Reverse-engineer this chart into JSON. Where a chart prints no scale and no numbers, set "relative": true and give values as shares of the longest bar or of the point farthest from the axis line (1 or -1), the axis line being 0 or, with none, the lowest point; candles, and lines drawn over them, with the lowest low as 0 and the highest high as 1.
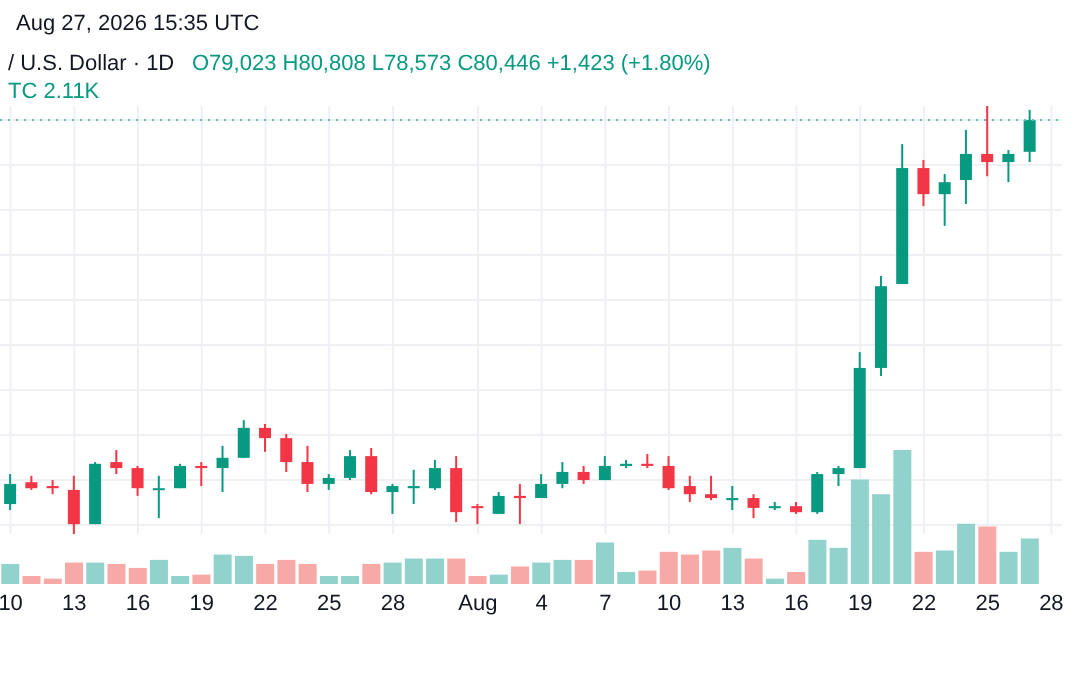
{
  "chart_data": [
    {
      "type": "candlestick",
      "relative": true,
      "grid": true,
      "annotations": [
        "Aug 27, 2026 15:35 UTC",
        "/ U.S. Dollar · 1D",
        "O79,023 H80,808 L78,573 C80,446 +1,423 (+1.80%)",
        "TC 2.11K"
      ],
      "categories": [
        "10",
        null,
        null,
        "13",
        null,
        null,
        "16",
        null,
        null,
        "19",
        null,
        null,
        "22",
        null,
        null,
        "25",
        null,
        null,
        "28",
        null,
        null,
        null,
        "Aug",
        null,
        null,
        "4",
        null,
        null,
        "7",
        null,
        null,
        "10",
        null,
        null,
        "13",
        null,
        null,
        "16",
        null,
        null,
        "19",
        null,
        null,
        "22",
        null,
        null,
        "25",
        null,
        null,
        "28"
      ],
      "ref_lines": [
        {
          "axis": "y",
          "value": 0.967,
          "color": "#5fc4b3",
          "line_style": "dotted"
        }
      ],
      "ohlc": [
        [
          0.07,
          0.14,
          0.056,
          0.117
        ],
        [
          0.121,
          0.136,
          0.103,
          0.107
        ],
        [
          0.112,
          0.126,
          0.093,
          0.107
        ],
        [
          0.103,
          0.136,
          0,
          0.023
        ],
        [
          0.023,
          0.168,
          0.023,
          0.164
        ],
        [
          0.168,
          0.196,
          0.14,
          0.154
        ],
        [
          0.154,
          0.159,
          0.089,
          0.107
        ],
        [
          0.103,
          0.136,
          0.037,
          0.107
        ],
        [
          0.107,
          0.164,
          0.107,
          0.159
        ],
        [
          0.159,
          0.168,
          0.112,
          0.154
        ],
        [
          0.154,
          0.206,
          0.098,
          0.178
        ],
        [
          0.178,
          0.266,
          0.178,
          0.248
        ],
        [
          0.248,
          0.257,
          0.192,
          0.224
        ],
        [
          0.224,
          0.234,
          0.145,
          0.168
        ],
        [
          0.168,
          0.206,
          0.098,
          0.117
        ],
        [
          0.117,
          0.14,
          0.103,
          0.131
        ],
        [
          0.131,
          0.196,
          0.126,
          0.182
        ],
        [
          0.182,
          0.201,
          0.093,
          0.098
        ],
        [
          0.098,
          0.117,
          0.047,
          0.112
        ],
        [
          0.107,
          0.15,
          0.07,
          0.112
        ],
        [
          0.107,
          0.173,
          0.103,
          0.154
        ],
        [
          0.154,
          0.182,
          0.028,
          0.051
        ],
        [
          0.065,
          0.07,
          0.023,
          0.061
        ],
        [
          0.047,
          0.098,
          0.047,
          0.089
        ],
        [
          0.089,
          0.117,
          0.023,
          0.084
        ],
        [
          0.084,
          0.14,
          0.084,
          0.117
        ],
        [
          0.117,
          0.168,
          0.107,
          0.145
        ],
        [
          0.145,
          0.159,
          0.117,
          0.126
        ],
        [
          0.126,
          0.182,
          0.126,
          0.159
        ],
        [
          0.159,
          0.173,
          0.154,
          0.164
        ],
        [
          0.164,
          0.187,
          0.154,
          0.159
        ],
        [
          0.159,
          0.182,
          0.103,
          0.107
        ],
        [
          0.112,
          0.136,
          0.075,
          0.093
        ],
        [
          0.093,
          0.136,
          0.079,
          0.084
        ],
        [
          0.079,
          0.112,
          0.056,
          0.084
        ],
        [
          0.084,
          0.093,
          0.037,
          0.061
        ],
        [
          0.061,
          0.075,
          0.056,
          0.065
        ],
        [
          0.065,
          0.075,
          0.047,
          0.051
        ],
        [
          0.051,
          0.145,
          0.047,
          0.14
        ],
        [
          0.14,
          0.159,
          0.112,
          0.154
        ],
        [
          0.154,
          0.425,
          0.154,
          0.388
        ],
        [
          0.388,
          0.603,
          0.369,
          0.579
        ],
        [
          0.584,
          0.911,
          0.584,
          0.855
        ],
        [
          0.855,
          0.874,
          0.766,
          0.794
        ],
        [
          0.794,
          0.841,
          0.72,
          0.822
        ],
        [
          0.827,
          0.944,
          0.771,
          0.888
        ],
        [
          0.888,
          1,
          0.836,
          0.869
        ],
        [
          0.869,
          0.897,
          0.822,
          0.888
        ],
        [
          0.893,
          0.991,
          0.869,
          0.967
        ],
        null
      ],
      "colors": [
        "#089981",
        "#f23645",
        "#f23645",
        "#f23645",
        "#089981",
        "#f23645",
        "#f23645",
        "#089981",
        "#089981",
        "#f23645",
        "#089981",
        "#089981",
        "#f23645",
        "#f23645",
        "#f23645",
        "#089981",
        "#089981",
        "#f23645",
        "#089981",
        "#089981",
        "#089981",
        "#f23645",
        "#f23645",
        "#089981",
        "#f23645",
        "#089981",
        "#089981",
        "#f23645",
        "#089981",
        "#089981",
        "#f23645",
        "#f23645",
        "#f23645",
        "#f23645",
        "#089981",
        "#f23645",
        "#089981",
        "#f23645",
        "#089981",
        "#089981",
        "#089981",
        "#089981",
        "#089981",
        "#f23645",
        "#089981",
        "#089981",
        "#f23645",
        "#089981",
        "#089981",
        null
      ]
    },
    {
      "type": "bar",
      "relative": true,
      "categories": [
        null,
        null,
        null,
        null,
        null,
        null,
        null,
        null,
        null,
        null,
        null,
        null,
        null,
        null,
        null,
        null,
        null,
        null,
        null,
        null,
        null,
        null,
        null,
        null,
        null,
        null,
        null,
        null,
        null,
        null,
        null,
        null,
        null,
        null,
        null,
        null,
        null,
        null,
        null,
        null,
        null,
        null,
        null,
        null,
        null,
        null,
        null,
        null,
        null,
        null
      ],
      "values": [
        0.15,
        0.06,
        0.04,
        0.16,
        0.16,
        0.15,
        0.12,
        0.18,
        0.06,
        0.07,
        0.22,
        0.21,
        0.15,
        0.18,
        0.15,
        0.06,
        0.06,
        0.15,
        0.16,
        0.19,
        0.19,
        0.19,
        0.06,
        0.07,
        0.13,
        0.16,
        0.18,
        0.18,
        0.31,
        0.09,
        0.1,
        0.24,
        0.22,
        0.25,
        0.27,
        0.19,
        0.04,
        0.09,
        0.33,
        0.27,
        0.78,
        0.67,
        1,
        0.24,
        0.25,
        0.45,
        0.43,
        0.24,
        0.34,
        null
      ],
      "colors": [
        "#92d2cc",
        "#f7a9a7",
        "#f7a9a7",
        "#f7a9a7",
        "#92d2cc",
        "#f7a9a7",
        "#f7a9a7",
        "#92d2cc",
        "#92d2cc",
        "#f7a9a7",
        "#92d2cc",
        "#92d2cc",
        "#f7a9a7",
        "#f7a9a7",
        "#f7a9a7",
        "#92d2cc",
        "#92d2cc",
        "#f7a9a7",
        "#92d2cc",
        "#92d2cc",
        "#92d2cc",
        "#f7a9a7",
        "#f7a9a7",
        "#92d2cc",
        "#f7a9a7",
        "#92d2cc",
        "#92d2cc",
        "#f7a9a7",
        "#92d2cc",
        "#92d2cc",
        "#f7a9a7",
        "#f7a9a7",
        "#f7a9a7",
        "#f7a9a7",
        "#92d2cc",
        "#f7a9a7",
        "#92d2cc",
        "#f7a9a7",
        "#92d2cc",
        "#92d2cc",
        "#92d2cc",
        "#92d2cc",
        "#92d2cc",
        "#f7a9a7",
        "#92d2cc",
        "#92d2cc",
        "#f7a9a7",
        "#92d2cc",
        "#92d2cc",
        null
      ]
    }
  ]
}
